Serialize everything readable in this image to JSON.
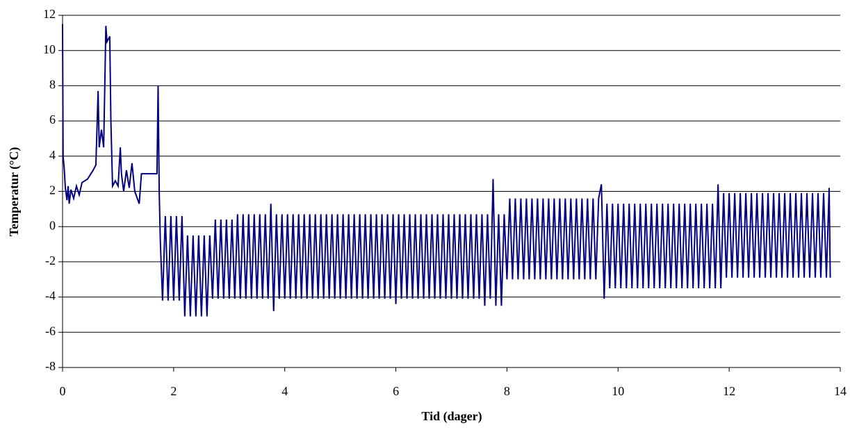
{
  "chart_data": {
    "type": "line",
    "x_label": "Tid (dager)",
    "y_label": "Temperatur (°C)",
    "color": "#000080",
    "grid": true,
    "xlim": [
      0,
      14
    ],
    "xticks": [
      0,
      2,
      4,
      6,
      8,
      10,
      12,
      14
    ],
    "ylim": [
      -8,
      12
    ],
    "yticks": [
      -8,
      -6,
      -4,
      -2,
      0,
      2,
      4,
      6,
      8,
      10,
      12
    ],
    "x": [
      0,
      0.01,
      0.03,
      0.05,
      0.08,
      0.1,
      0.12,
      0.15,
      0.2,
      0.25,
      0.3,
      0.35,
      0.45,
      0.55,
      0.6,
      0.64,
      0.66,
      0.7,
      0.74,
      0.78,
      0.8,
      0.85,
      0.87,
      0.9,
      0.95,
      1.0,
      1.04,
      1.06,
      1.1,
      1.15,
      1.2,
      1.25,
      1.3,
      1.38,
      1.42,
      1.5,
      1.6,
      1.7,
      1.72,
      1.74,
      1.76,
      1.8,
      1.85,
      1.9,
      1.95,
      2,
      2.05,
      2.1,
      2.15,
      2.2,
      2.25,
      2.3,
      2.35,
      2.4,
      2.45,
      2.5,
      2.55,
      2.6,
      2.65,
      2.7,
      2.75,
      2.8,
      2.85,
      2.9,
      2.95,
      3,
      3.05,
      3.1,
      3.15,
      3.2,
      3.25,
      3.3,
      3.35,
      3.4,
      3.45,
      3.5,
      3.55,
      3.6,
      3.65,
      3.7,
      3.75,
      3.8,
      3.85,
      3.9,
      3.95,
      4,
      4.05,
      4.1,
      4.15,
      4.2,
      4.25,
      4.3,
      4.35,
      4.4,
      4.45,
      4.5,
      4.55,
      4.6,
      4.65,
      4.7,
      4.75,
      4.8,
      4.85,
      4.9,
      4.95,
      5,
      5.05,
      5.1,
      5.15,
      5.2,
      5.25,
      5.3,
      5.35,
      5.4,
      5.45,
      5.5,
      5.55,
      5.6,
      5.65,
      5.7,
      5.75,
      5.8,
      5.85,
      5.9,
      5.95,
      6,
      6.05,
      6.1,
      6.15,
      6.2,
      6.25,
      6.3,
      6.35,
      6.4,
      6.45,
      6.5,
      6.55,
      6.6,
      6.65,
      6.7,
      6.75,
      6.8,
      6.85,
      6.9,
      6.95,
      7,
      7.05,
      7.1,
      7.15,
      7.2,
      7.25,
      7.3,
      7.35,
      7.4,
      7.45,
      7.5,
      7.55,
      7.6,
      7.65,
      7.7,
      7.75,
      7.8,
      7.85,
      7.9,
      7.95,
      8,
      8.05,
      8.1,
      8.15,
      8.2,
      8.25,
      8.3,
      8.35,
      8.4,
      8.45,
      8.5,
      8.55,
      8.6,
      8.65,
      8.7,
      8.75,
      8.8,
      8.85,
      8.9,
      8.95,
      9,
      9.05,
      9.1,
      9.15,
      9.2,
      9.25,
      9.3,
      9.35,
      9.4,
      9.45,
      9.5,
      9.55,
      9.6,
      9.65,
      9.7,
      9.75,
      9.8,
      9.85,
      9.9,
      9.95,
      10,
      10.05,
      10.1,
      10.15,
      10.2,
      10.25,
      10.3,
      10.35,
      10.4,
      10.45,
      10.5,
      10.55,
      10.6,
      10.65,
      10.7,
      10.75,
      10.8,
      10.85,
      10.9,
      10.95,
      11,
      11.05,
      11.1,
      11.15,
      11.2,
      11.25,
      11.3,
      11.35,
      11.4,
      11.45,
      11.5,
      11.55,
      11.6,
      11.65,
      11.7,
      11.75,
      11.8,
      11.85,
      11.9,
      11.95,
      12,
      12.05,
      12.1,
      12.15,
      12.2,
      12.25,
      12.3,
      12.35,
      12.4,
      12.45,
      12.5,
      12.55,
      12.6,
      12.65,
      12.7,
      12.75,
      12.8,
      12.85,
      12.9,
      12.95,
      13,
      13.05,
      13.1,
      13.15,
      13.2,
      13.25,
      13.3,
      13.35,
      13.4,
      13.45,
      13.5,
      13.55,
      13.6,
      13.65,
      13.7,
      13.75,
      13.8,
      13.82
    ],
    "values": [
      11.5,
      4,
      3.3,
      2.2,
      1.5,
      2.3,
      1.3,
      2.1,
      1.6,
      2.3,
      1.8,
      2.5,
      2.7,
      3.2,
      3.5,
      7.7,
      4.5,
      5.5,
      4.5,
      11.4,
      10.5,
      10.8,
      6,
      2.3,
      2.6,
      2.3,
      4.5,
      3,
      2,
      3.2,
      2.2,
      3.6,
      2,
      1.3,
      3,
      3,
      3,
      3,
      8,
      2,
      -0.8,
      -4.2,
      0.6,
      -4.2,
      0.6,
      -4.2,
      0.6,
      -4.2,
      0.6,
      -5.1,
      -0.5,
      -5.1,
      -0.5,
      -5.1,
      -0.5,
      -5.1,
      -0.5,
      -5.1,
      -0.5,
      -4.1,
      0.4,
      -4.1,
      0.4,
      -4.1,
      0.4,
      -4.1,
      0.4,
      -4.1,
      0.7,
      -4.1,
      0.7,
      -4.1,
      0.7,
      -4.1,
      0.7,
      -4.1,
      0.7,
      -4.1,
      0.7,
      -4.1,
      1.3,
      -4.8,
      0.7,
      -4.1,
      0.7,
      -4.1,
      0.7,
      -4.1,
      0.7,
      -4.1,
      0.7,
      -4.1,
      0.7,
      -4.1,
      0.7,
      -4.1,
      0.7,
      -4.1,
      0.7,
      -4.1,
      0.7,
      -4.1,
      0.7,
      -4.1,
      0.7,
      -4.1,
      0.7,
      -4.1,
      0.7,
      -4.1,
      0.7,
      -4.1,
      0.7,
      -4.1,
      0.7,
      -4.1,
      0.7,
      -4.1,
      0.7,
      -4.1,
      0.7,
      -4.1,
      0.7,
      -4.1,
      0.7,
      -4.4,
      0.7,
      -4.1,
      0.7,
      -4.1,
      0.7,
      -4.1,
      0.7,
      -4.1,
      0.7,
      -4.1,
      0.7,
      -4.1,
      0.7,
      -4.1,
      0.7,
      -4.1,
      0.7,
      -4.1,
      0.7,
      -4.1,
      0.7,
      -4.1,
      0.7,
      -4.1,
      0.7,
      -4.1,
      0.7,
      -4.1,
      0.7,
      -4.1,
      0.7,
      -4.5,
      0.7,
      -4.1,
      2.7,
      -4.5,
      0.7,
      -4.5,
      0.7,
      -3,
      1.6,
      -3,
      1.6,
      -3,
      1.6,
      -3,
      1.6,
      -3,
      1.6,
      -3,
      1.6,
      -3,
      1.6,
      -3,
      1.6,
      -3,
      1.6,
      -3,
      1.6,
      -3,
      1.6,
      -3,
      1.6,
      -3,
      1.6,
      -3,
      1.6,
      -3,
      1.6,
      -3,
      1.6,
      -3,
      1.6,
      2.4,
      -4.1,
      1.3,
      -3.5,
      1.3,
      -3.5,
      1.3,
      -3.5,
      1.3,
      -3.5,
      1.3,
      -3.5,
      1.3,
      -3.5,
      1.3,
      -3.5,
      1.3,
      -3.5,
      1.3,
      -3.5,
      1.3,
      -3.5,
      1.3,
      -3.5,
      1.3,
      -3.5,
      1.3,
      -3.5,
      1.3,
      -3.5,
      1.3,
      -3.5,
      1.3,
      -3.5,
      1.3,
      -3.5,
      1.3,
      -3.5,
      1.3,
      -3.5,
      1.3,
      -3.5,
      2.4,
      -3.5,
      1.9,
      -2.9,
      1.9,
      -2.9,
      1.9,
      -2.9,
      1.9,
      -2.9,
      1.9,
      -2.9,
      1.9,
      -2.9,
      1.9,
      -2.9,
      1.9,
      -2.9,
      1.9,
      -2.9,
      1.9,
      -2.9,
      1.9,
      -2.9,
      1.9,
      -2.9,
      1.9,
      -2.9,
      1.9,
      -2.9,
      1.9,
      -2.9,
      1.9,
      -2.9,
      1.9,
      -2.9,
      1.9,
      -2.9,
      1.9,
      -2.9,
      2.2,
      -2.9
    ]
  }
}
